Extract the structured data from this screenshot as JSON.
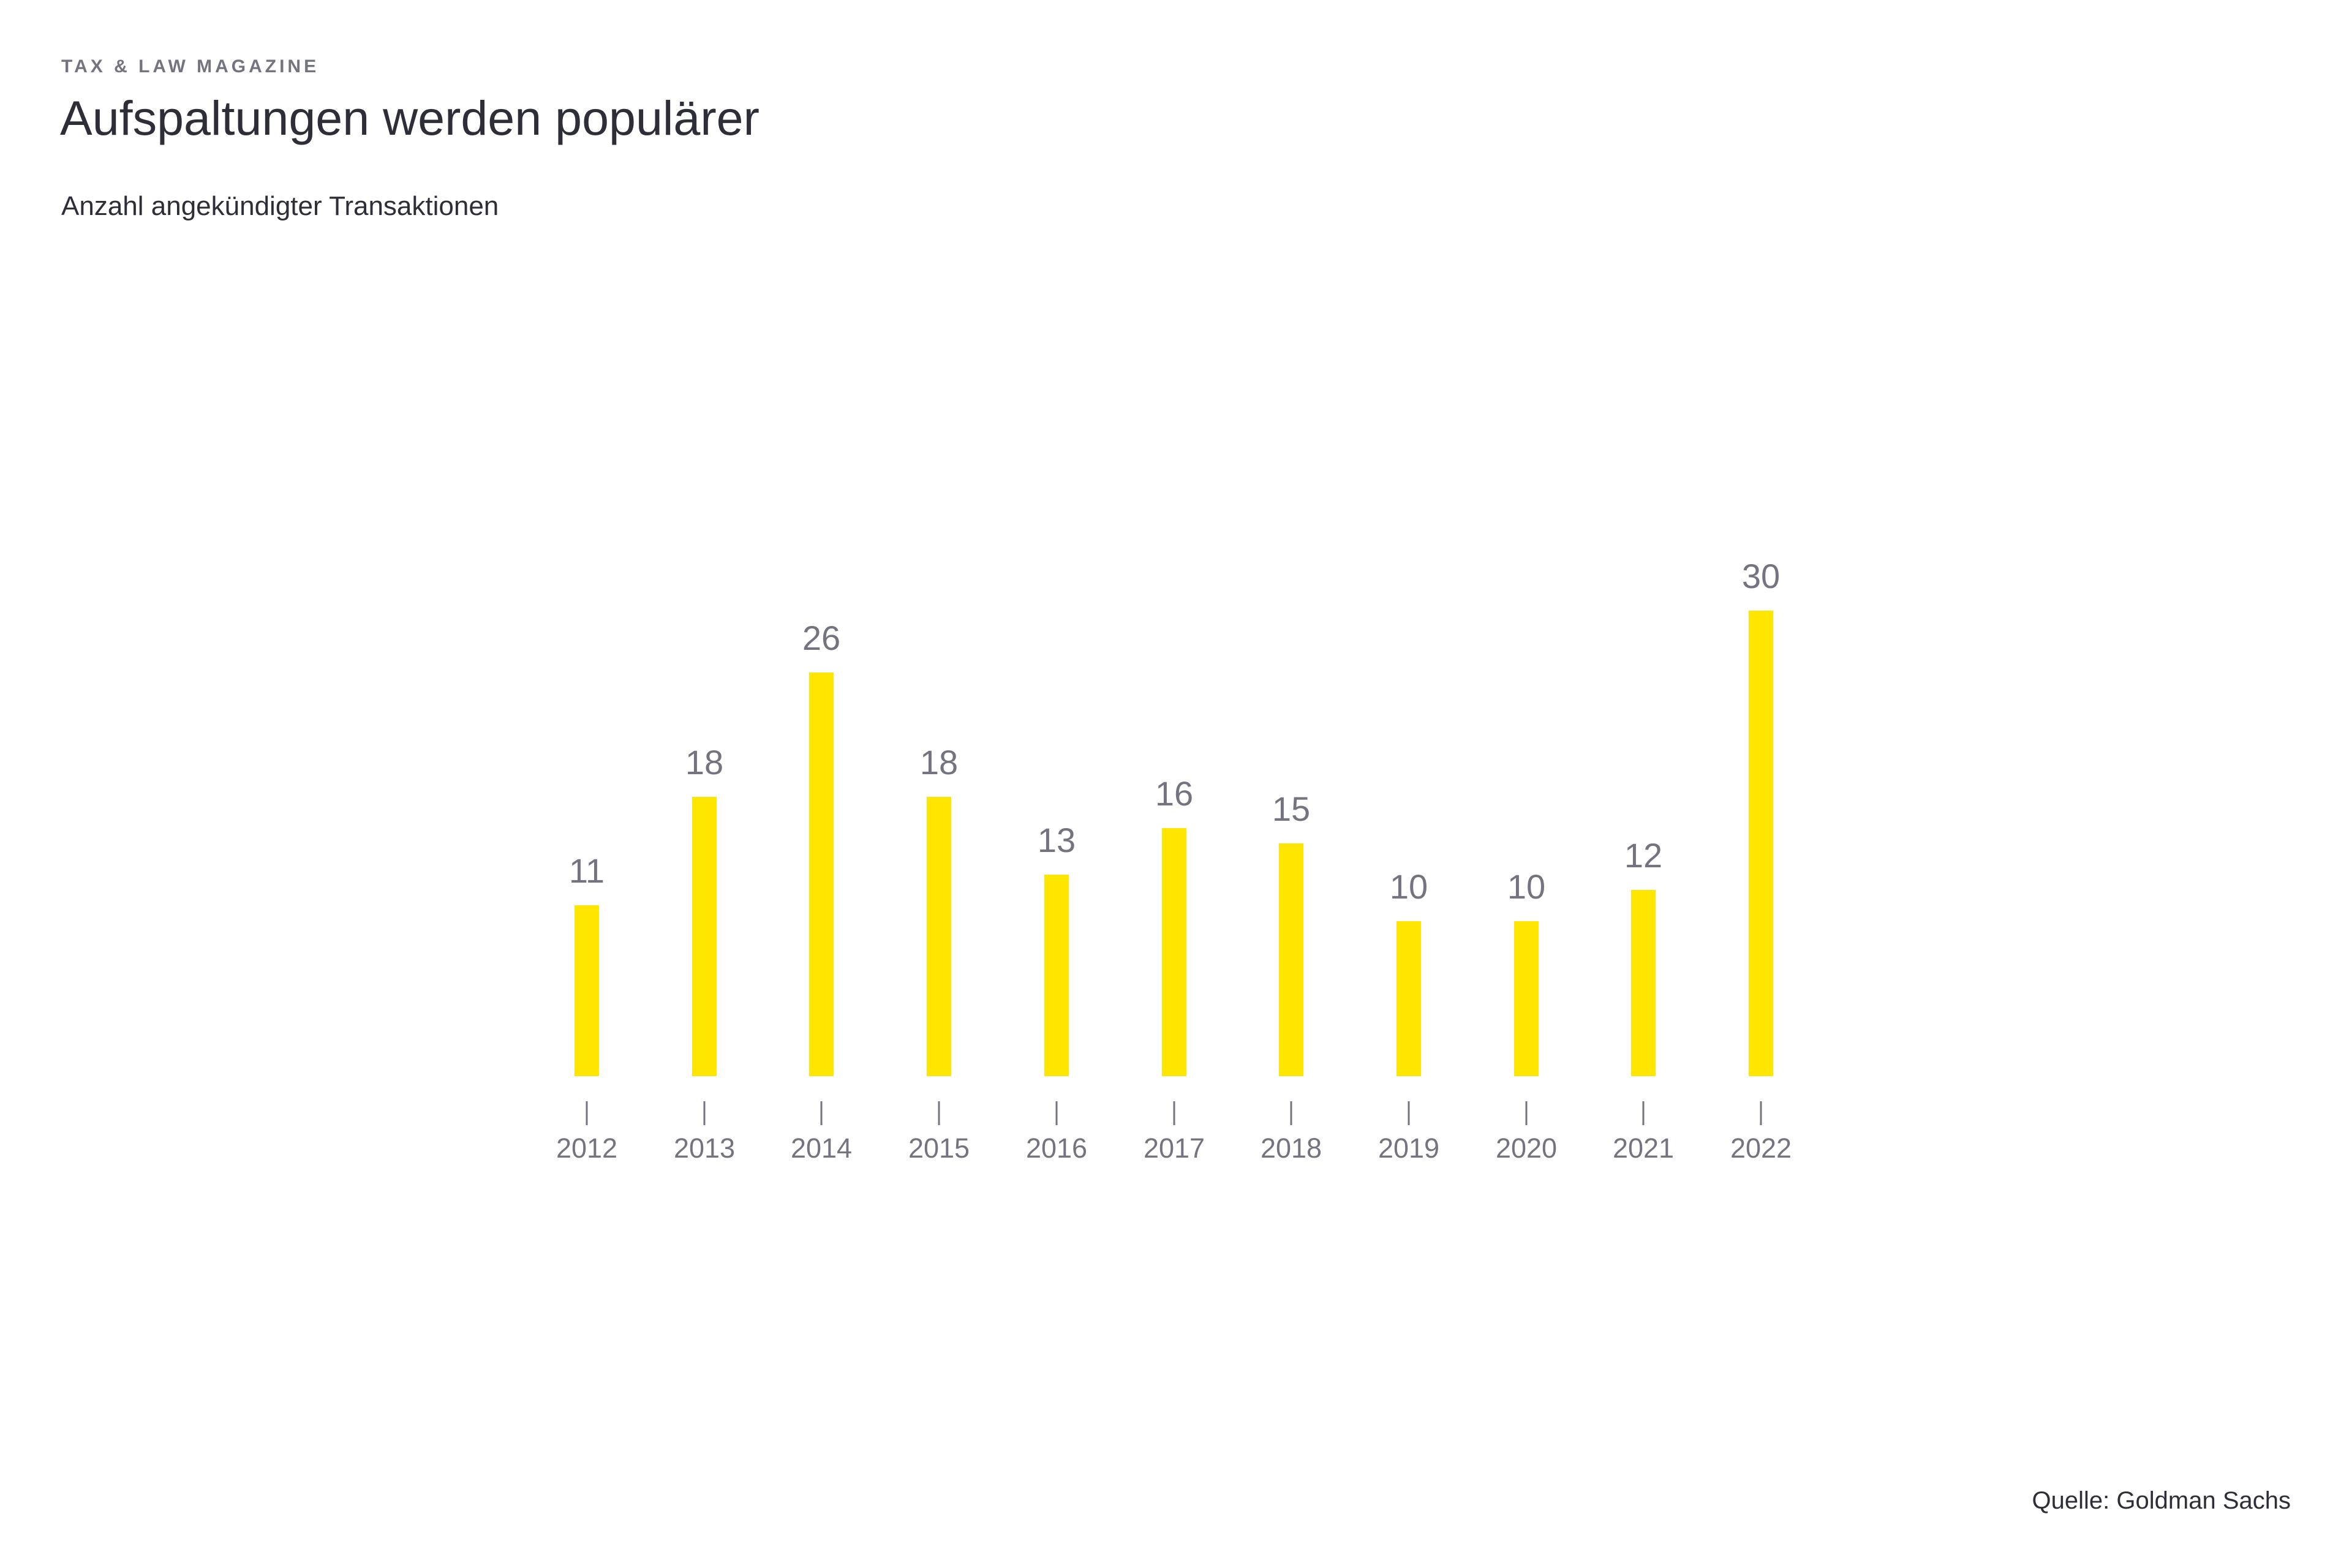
{
  "header": {
    "eyebrow": "TAX & LAW MAGAZINE",
    "title": "Aufspaltungen werden populärer",
    "subtitle": "Anzahl angekündigter Transaktionen"
  },
  "footer": {
    "source": "Quelle: Goldman Sachs"
  },
  "colors": {
    "bar": "#FFE600",
    "axis_label": "#747480",
    "heading": "#2e2e38",
    "background": "#ffffff"
  },
  "chart_data": {
    "type": "bar",
    "title": "Aufspaltungen werden populärer",
    "subtitle": "Anzahl angekündigter Transaktionen",
    "categories": [
      "2012",
      "2013",
      "2014",
      "2015",
      "2016",
      "2017",
      "2018",
      "2019",
      "2020",
      "2021",
      "2022"
    ],
    "values": [
      11,
      18,
      26,
      18,
      13,
      16,
      15,
      10,
      10,
      12,
      30
    ],
    "xlabel": "",
    "ylabel": "Anzahl angekündigter Transaktionen",
    "ylim": [
      0,
      30
    ],
    "grid": false,
    "legend": false,
    "data_labels": true,
    "source": "Quelle: Goldman Sachs"
  }
}
